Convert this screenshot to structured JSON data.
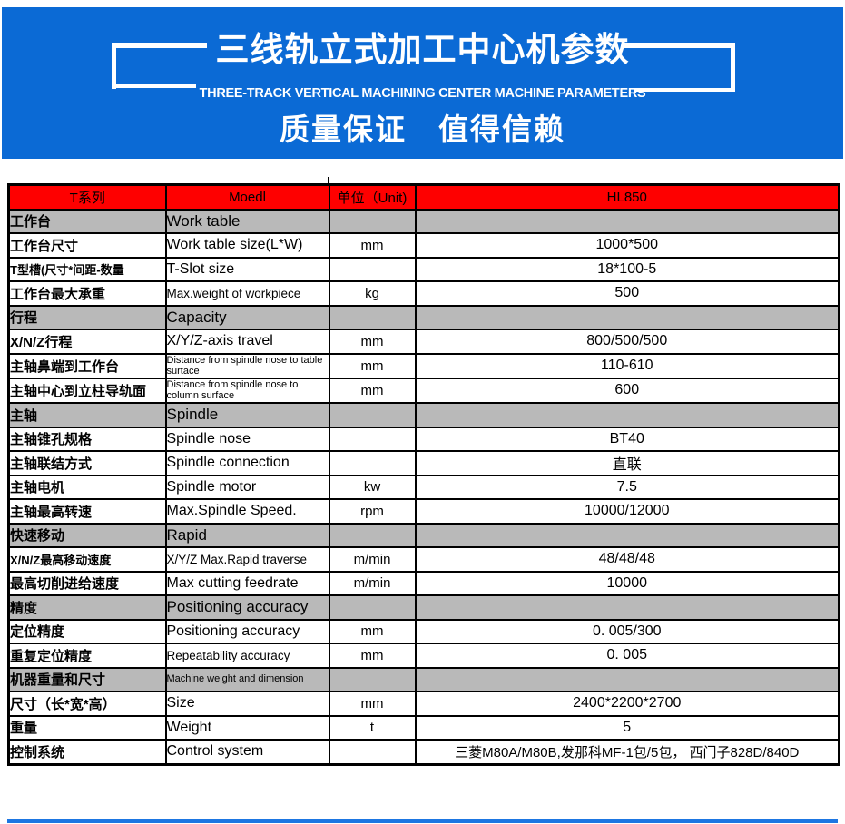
{
  "banner": {
    "bg_color": "#0b6ad5",
    "title": "三线轨立式加工中心机参数",
    "subtitle": "THREE-TRACK VERTICAL MACHINING CENTER MACHINE PARAMETERS",
    "tagline": "质量保证　值得信赖"
  },
  "table": {
    "header_bg_color": "#fe0000",
    "section_bg_color": "#b9b9b9",
    "header": {
      "series": "T系列",
      "model": "Moedl",
      "unit": "单位（Unit)",
      "value": "HL850"
    },
    "rows": [
      {
        "type": "section",
        "cn": "工作台",
        "en": "Work table",
        "unit": "",
        "value": ""
      },
      {
        "type": "data",
        "cn": "工作台尺寸",
        "en": "Work table size(L*W)",
        "unit": "mm",
        "value": "1000*500"
      },
      {
        "type": "data",
        "cn": "T型槽(尺寸*间距-数量",
        "en": "T-Slot size",
        "unit": "",
        "value": "18*100-5"
      },
      {
        "type": "data",
        "cn": "工作台最大承重",
        "en": "Max.weight of workpiece",
        "unit": "kg",
        "value": "500"
      },
      {
        "type": "section",
        "cn": "行程",
        "en": "Capacity",
        "unit": "",
        "value": ""
      },
      {
        "type": "data",
        "cn": "X/N/Z行程",
        "en": "X/Y/Z-axis travel",
        "unit": "mm",
        "value": "800/500/500"
      },
      {
        "type": "data",
        "cn": "主轴鼻端到工作台",
        "en": "Distance from spindle nose to table surtace",
        "unit": "mm",
        "value": "110-610"
      },
      {
        "type": "data",
        "cn": "主轴中心到立柱导轨面",
        "en": "Distance from spindle nose to column surface",
        "unit": "mm",
        "value": "600"
      },
      {
        "type": "section",
        "cn": "主轴",
        "en": "Spindle",
        "unit": "",
        "value": ""
      },
      {
        "type": "data",
        "cn": "主轴锥孔规格",
        "en": "Spindle nose",
        "unit": "",
        "value": "BT40"
      },
      {
        "type": "data",
        "cn": "主轴联结方式",
        "en": "Spindle connection",
        "unit": "",
        "value": "直联"
      },
      {
        "type": "data",
        "cn": "主轴电机",
        "en": "Spindle motor",
        "unit": "kw",
        "value": "7.5"
      },
      {
        "type": "data",
        "cn": "主轴最高转速",
        "en": "Max.Spindle Speed.",
        "unit": "rpm",
        "value": "10000/12000"
      },
      {
        "type": "section",
        "cn": "快速移动",
        "en": "Rapid",
        "unit": "",
        "value": ""
      },
      {
        "type": "data",
        "cn": "X/N/Z最高移动速度",
        "en": "X/Y/Z Max.Rapid traverse",
        "unit": "m/min",
        "value": "48/48/48"
      },
      {
        "type": "data",
        "cn": "最高切削进给速度",
        "en": "Max cutting feedrate",
        "unit": "m/min",
        "value": "10000"
      },
      {
        "type": "section",
        "cn": "精度",
        "en": "Positioning accuracy",
        "unit": "",
        "value": ""
      },
      {
        "type": "data",
        "cn": "定位精度",
        "en": "Positioning accuracy",
        "unit": "mm",
        "value": "0. 005/300"
      },
      {
        "type": "data",
        "cn": "重复定位精度",
        "en": "Repeatability accuracy",
        "unit": "mm",
        "value": "0. 005"
      },
      {
        "type": "section",
        "cn": "机器重量和尺寸",
        "en": "Machine weight and dimension",
        "unit": "",
        "value": ""
      },
      {
        "type": "data",
        "cn": "尺寸（长*宽*高）",
        "en": "Size",
        "unit": "mm",
        "value": "2400*2200*2700"
      },
      {
        "type": "data",
        "cn": "重量",
        "en": "Weight",
        "unit": "t",
        "value": "5"
      },
      {
        "type": "data",
        "cn": "控制系统",
        "en": "Control system",
        "unit": "",
        "value": "三菱M80A/M80B,发那科MF-1包/5包， 西门子828D/840D"
      }
    ]
  },
  "footer": {
    "bar_color": "#1d76e2"
  }
}
